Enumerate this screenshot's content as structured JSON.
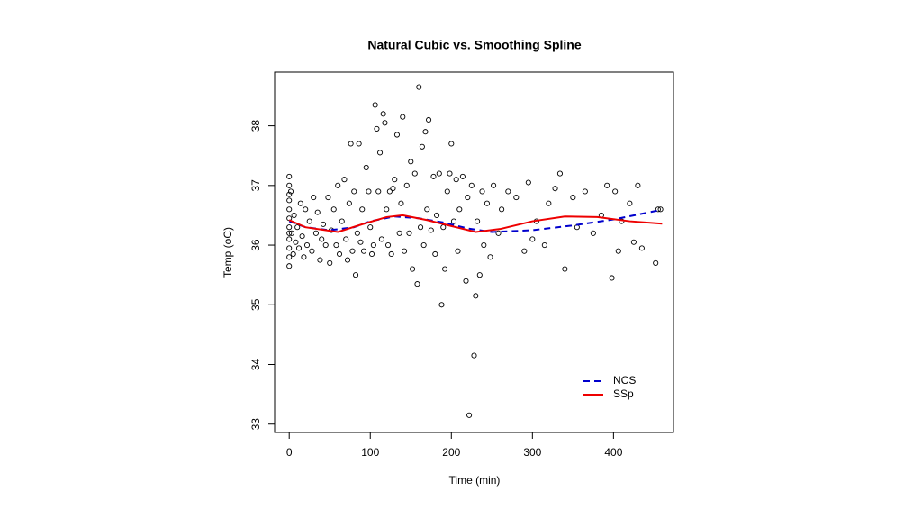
{
  "chart_data": {
    "type": "scatter",
    "title": "Natural Cubic vs. Smoothing Spline",
    "x_label": "Time (min)",
    "y_label": "Temp (oC)",
    "xlim": [
      -18,
      474
    ],
    "ylim": [
      32.86,
      38.9
    ],
    "xticks": [
      0,
      100,
      200,
      300,
      400
    ],
    "yticks": [
      33,
      34,
      35,
      36,
      37,
      38
    ],
    "grid": false,
    "legend": "bottom-right",
    "points": {
      "color": "#000000",
      "x": [
        0,
        0,
        0,
        0,
        0,
        0,
        0,
        0,
        0,
        0,
        0,
        0,
        2,
        3,
        5,
        6,
        8,
        10,
        12,
        14,
        16,
        18,
        20,
        22,
        25,
        28,
        30,
        33,
        35,
        38,
        40,
        42,
        45,
        48,
        50,
        52,
        55,
        58,
        60,
        62,
        65,
        68,
        70,
        72,
        74,
        76,
        78,
        80,
        82,
        84,
        86,
        88,
        90,
        92,
        95,
        98,
        100,
        102,
        104,
        106,
        108,
        110,
        112,
        114,
        116,
        118,
        120,
        122,
        124,
        126,
        128,
        130,
        133,
        136,
        138,
        140,
        142,
        145,
        148,
        150,
        152,
        155,
        158,
        160,
        162,
        164,
        166,
        168,
        170,
        172,
        175,
        178,
        180,
        182,
        185,
        188,
        190,
        192,
        195,
        198,
        200,
        203,
        206,
        208,
        210,
        214,
        218,
        220,
        222,
        225,
        228,
        230,
        232,
        235,
        238,
        240,
        244,
        248,
        252,
        258,
        262,
        270,
        280,
        290,
        295,
        300,
        305,
        315,
        320,
        328,
        334,
        340,
        350,
        355,
        365,
        375,
        385,
        392,
        398,
        402,
        406,
        410,
        420,
        425,
        430,
        435,
        452,
        455,
        458
      ],
      "values": [
        35.65,
        35.8,
        35.95,
        36.1,
        36.2,
        36.3,
        36.45,
        36.6,
        36.75,
        36.85,
        37.0,
        37.15,
        36.9,
        36.2,
        35.85,
        36.5,
        36.05,
        36.3,
        35.95,
        36.7,
        36.15,
        35.8,
        36.6,
        36.0,
        36.4,
        35.9,
        36.8,
        36.2,
        36.55,
        35.75,
        36.1,
        36.35,
        36.0,
        36.8,
        35.7,
        36.25,
        36.6,
        36.0,
        37.0,
        35.85,
        36.4,
        37.1,
        36.1,
        35.75,
        36.7,
        37.7,
        35.9,
        36.9,
        35.5,
        36.2,
        37.7,
        36.05,
        36.6,
        35.9,
        37.3,
        36.9,
        36.3,
        35.85,
        36.0,
        38.35,
        37.95,
        36.9,
        37.55,
        36.1,
        38.2,
        38.05,
        36.6,
        36.0,
        36.9,
        35.85,
        36.95,
        37.1,
        37.85,
        36.2,
        36.7,
        38.15,
        35.9,
        37.0,
        36.2,
        37.4,
        35.6,
        37.2,
        35.35,
        38.65,
        36.3,
        37.65,
        36.0,
        37.9,
        36.6,
        38.1,
        36.25,
        37.15,
        35.85,
        36.5,
        37.2,
        35.0,
        36.3,
        35.6,
        36.9,
        37.2,
        37.7,
        36.4,
        37.1,
        35.9,
        36.6,
        37.15,
        35.4,
        36.8,
        33.15,
        37.0,
        34.15,
        35.15,
        36.4,
        35.5,
        36.9,
        36.0,
        36.7,
        35.8,
        37.0,
        36.2,
        36.6,
        36.9,
        36.8,
        35.9,
        37.05,
        36.1,
        36.4,
        36.0,
        36.7,
        36.95,
        37.2,
        35.6,
        36.8,
        36.3,
        36.9,
        36.2,
        36.5,
        37.0,
        35.45,
        36.9,
        35.9,
        36.4,
        36.7,
        36.05,
        37.0,
        35.95,
        35.7,
        36.6,
        36.6
      ]
    },
    "series": [
      {
        "name": "NCS",
        "color": "#0000cd",
        "dashed": true,
        "x": [
          0,
          20,
          50,
          80,
          100,
          130,
          160,
          190,
          220,
          250,
          300,
          350,
          400,
          455
        ],
        "values": [
          36.4,
          36.3,
          36.25,
          36.3,
          36.4,
          36.48,
          36.45,
          36.38,
          36.28,
          36.22,
          36.25,
          36.33,
          36.43,
          36.58
        ]
      },
      {
        "name": "SSp",
        "color": "#ee0000",
        "dashed": false,
        "x": [
          0,
          20,
          60,
          90,
          120,
          140,
          170,
          200,
          230,
          260,
          300,
          340,
          380,
          420,
          460
        ],
        "values": [
          36.42,
          36.3,
          36.22,
          36.35,
          36.47,
          36.5,
          36.42,
          36.32,
          36.22,
          36.27,
          36.4,
          36.48,
          36.47,
          36.4,
          36.36
        ]
      }
    ]
  }
}
